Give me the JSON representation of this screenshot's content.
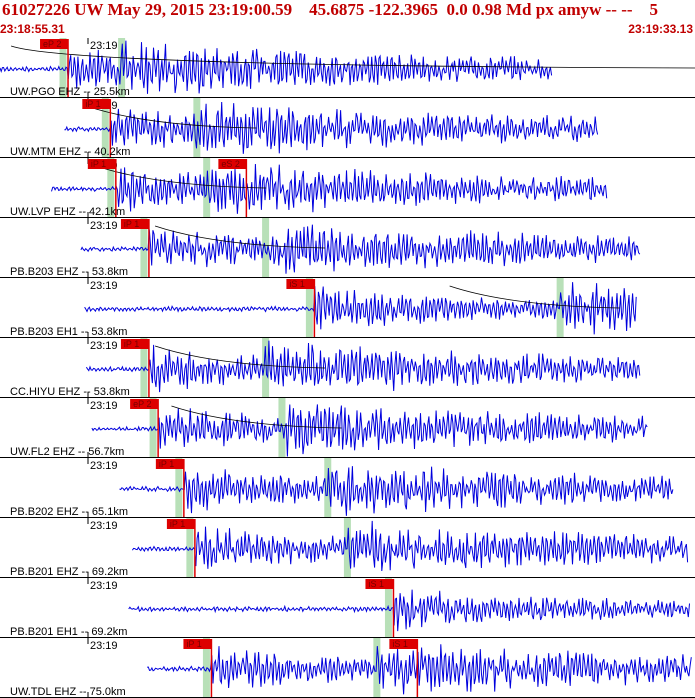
{
  "header": {
    "title": "61027226 UW May 29, 2015 23:19:00.59    45.6875 -122.3965  0.0 0.98 Md px amyw -- --    5",
    "start_time": "23:18:55.31",
    "end_time": "23:19:33.13"
  },
  "colors": {
    "waveform": "#0000dd",
    "pick": "#dd0000",
    "marker": "#b8e0b8",
    "header_text": "#c00000"
  },
  "traces": [
    {
      "time_label": "23:19",
      "station_label": "UW.PGO EHZ -- 25.5km",
      "picks": [
        {
          "label": "eP 2",
          "time": 3.7
        }
      ]
    },
    {
      "time_label": "23:19",
      "station_label": "UW.MTM EHZ -- 40.2km",
      "picks": [
        {
          "label": "iP 1",
          "time": 6.0
        }
      ]
    },
    {
      "time_label": "23:19",
      "station_label": "UW.LVP EHZ -- 42.1km",
      "picks": [
        {
          "label": "iP 1",
          "time": 6.3
        },
        {
          "label": "eS 2",
          "time": 13.4
        }
      ]
    },
    {
      "time_label": "23:19",
      "station_label": "PB.B203 EHZ -- 53.8km",
      "picks": [
        {
          "label": "iP 1",
          "time": 8.1
        }
      ]
    },
    {
      "time_label": "23:19",
      "station_label": "PB.B203 EH1 -- 53.8km",
      "picks": [
        {
          "label": "iS 1",
          "time": 17.1
        }
      ]
    },
    {
      "time_label": "23:19",
      "station_label": "CC.HIYU EHZ -- 53.8km",
      "picks": [
        {
          "label": "iP 1",
          "time": 8.1
        }
      ]
    },
    {
      "time_label": "23:19",
      "station_label": "UW.FL2 EHZ -- 56.7km",
      "picks": [
        {
          "label": "eP 2",
          "time": 8.6
        }
      ]
    },
    {
      "time_label": "23:19",
      "station_label": "PB.B202 EHZ -- 65.1km",
      "picks": [
        {
          "label": "iP 1",
          "time": 10.0
        }
      ]
    },
    {
      "time_label": "23:19",
      "station_label": "PB.B201 EHZ -- 69.2km",
      "picks": [
        {
          "label": "iP 1",
          "time": 10.6
        }
      ]
    },
    {
      "time_label": "23:19",
      "station_label": "PB.B201 EH1 -- 69.2km",
      "picks": [
        {
          "label": "iS 1",
          "time": 21.4
        }
      ]
    },
    {
      "time_label": "23:19",
      "station_label": "UW.TDL EHZ -- 75.0km",
      "picks": [
        {
          "label": "iP 1",
          "time": 11.5
        },
        {
          "label": "iS 1",
          "time": 22.7
        }
      ]
    }
  ]
}
